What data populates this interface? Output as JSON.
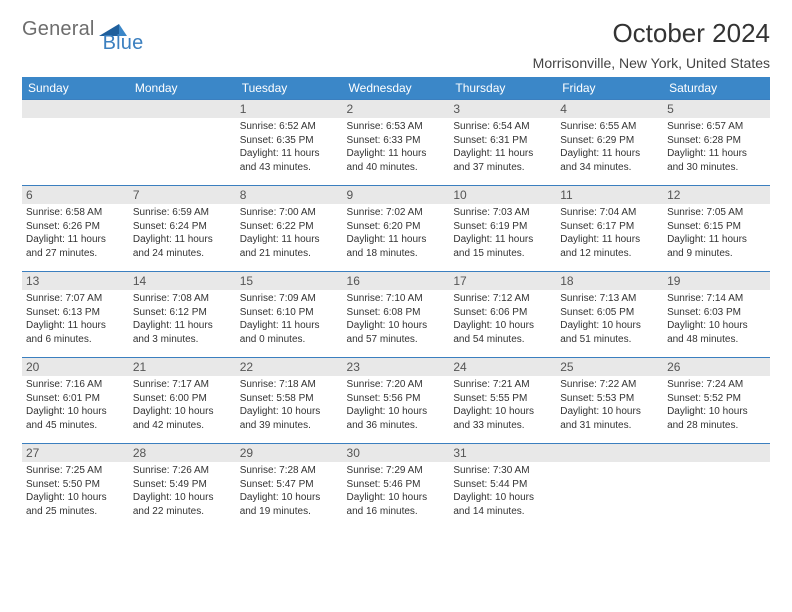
{
  "logo": {
    "text_general": "General",
    "text_blue": "Blue"
  },
  "header": {
    "title": "October 2024",
    "location": "Morrisonville, New York, United States"
  },
  "style": {
    "header_bg": "#3b87c8",
    "header_fg": "#ffffff",
    "rule_color": "#3b7fbf",
    "daynum_bg": "#e8e8e8",
    "body_bg": "#ffffff",
    "text_color": "#333333",
    "title_fontsize": 26,
    "location_fontsize": 14,
    "weekday_fontsize": 12,
    "cell_fontsize": 10
  },
  "weekdays": [
    "Sunday",
    "Monday",
    "Tuesday",
    "Wednesday",
    "Thursday",
    "Friday",
    "Saturday"
  ],
  "weeks": [
    [
      null,
      null,
      {
        "n": "1",
        "sr": "6:52 AM",
        "ss": "6:35 PM",
        "dl": "11 hours and 43 minutes."
      },
      {
        "n": "2",
        "sr": "6:53 AM",
        "ss": "6:33 PM",
        "dl": "11 hours and 40 minutes."
      },
      {
        "n": "3",
        "sr": "6:54 AM",
        "ss": "6:31 PM",
        "dl": "11 hours and 37 minutes."
      },
      {
        "n": "4",
        "sr": "6:55 AM",
        "ss": "6:29 PM",
        "dl": "11 hours and 34 minutes."
      },
      {
        "n": "5",
        "sr": "6:57 AM",
        "ss": "6:28 PM",
        "dl": "11 hours and 30 minutes."
      }
    ],
    [
      {
        "n": "6",
        "sr": "6:58 AM",
        "ss": "6:26 PM",
        "dl": "11 hours and 27 minutes."
      },
      {
        "n": "7",
        "sr": "6:59 AM",
        "ss": "6:24 PM",
        "dl": "11 hours and 24 minutes."
      },
      {
        "n": "8",
        "sr": "7:00 AM",
        "ss": "6:22 PM",
        "dl": "11 hours and 21 minutes."
      },
      {
        "n": "9",
        "sr": "7:02 AM",
        "ss": "6:20 PM",
        "dl": "11 hours and 18 minutes."
      },
      {
        "n": "10",
        "sr": "7:03 AM",
        "ss": "6:19 PM",
        "dl": "11 hours and 15 minutes."
      },
      {
        "n": "11",
        "sr": "7:04 AM",
        "ss": "6:17 PM",
        "dl": "11 hours and 12 minutes."
      },
      {
        "n": "12",
        "sr": "7:05 AM",
        "ss": "6:15 PM",
        "dl": "11 hours and 9 minutes."
      }
    ],
    [
      {
        "n": "13",
        "sr": "7:07 AM",
        "ss": "6:13 PM",
        "dl": "11 hours and 6 minutes."
      },
      {
        "n": "14",
        "sr": "7:08 AM",
        "ss": "6:12 PM",
        "dl": "11 hours and 3 minutes."
      },
      {
        "n": "15",
        "sr": "7:09 AM",
        "ss": "6:10 PM",
        "dl": "11 hours and 0 minutes."
      },
      {
        "n": "16",
        "sr": "7:10 AM",
        "ss": "6:08 PM",
        "dl": "10 hours and 57 minutes."
      },
      {
        "n": "17",
        "sr": "7:12 AM",
        "ss": "6:06 PM",
        "dl": "10 hours and 54 minutes."
      },
      {
        "n": "18",
        "sr": "7:13 AM",
        "ss": "6:05 PM",
        "dl": "10 hours and 51 minutes."
      },
      {
        "n": "19",
        "sr": "7:14 AM",
        "ss": "6:03 PM",
        "dl": "10 hours and 48 minutes."
      }
    ],
    [
      {
        "n": "20",
        "sr": "7:16 AM",
        "ss": "6:01 PM",
        "dl": "10 hours and 45 minutes."
      },
      {
        "n": "21",
        "sr": "7:17 AM",
        "ss": "6:00 PM",
        "dl": "10 hours and 42 minutes."
      },
      {
        "n": "22",
        "sr": "7:18 AM",
        "ss": "5:58 PM",
        "dl": "10 hours and 39 minutes."
      },
      {
        "n": "23",
        "sr": "7:20 AM",
        "ss": "5:56 PM",
        "dl": "10 hours and 36 minutes."
      },
      {
        "n": "24",
        "sr": "7:21 AM",
        "ss": "5:55 PM",
        "dl": "10 hours and 33 minutes."
      },
      {
        "n": "25",
        "sr": "7:22 AM",
        "ss": "5:53 PM",
        "dl": "10 hours and 31 minutes."
      },
      {
        "n": "26",
        "sr": "7:24 AM",
        "ss": "5:52 PM",
        "dl": "10 hours and 28 minutes."
      }
    ],
    [
      {
        "n": "27",
        "sr": "7:25 AM",
        "ss": "5:50 PM",
        "dl": "10 hours and 25 minutes."
      },
      {
        "n": "28",
        "sr": "7:26 AM",
        "ss": "5:49 PM",
        "dl": "10 hours and 22 minutes."
      },
      {
        "n": "29",
        "sr": "7:28 AM",
        "ss": "5:47 PM",
        "dl": "10 hours and 19 minutes."
      },
      {
        "n": "30",
        "sr": "7:29 AM",
        "ss": "5:46 PM",
        "dl": "10 hours and 16 minutes."
      },
      {
        "n": "31",
        "sr": "7:30 AM",
        "ss": "5:44 PM",
        "dl": "10 hours and 14 minutes."
      },
      null,
      null
    ]
  ],
  "labels": {
    "sunrise": "Sunrise:",
    "sunset": "Sunset:",
    "daylight": "Daylight:"
  }
}
